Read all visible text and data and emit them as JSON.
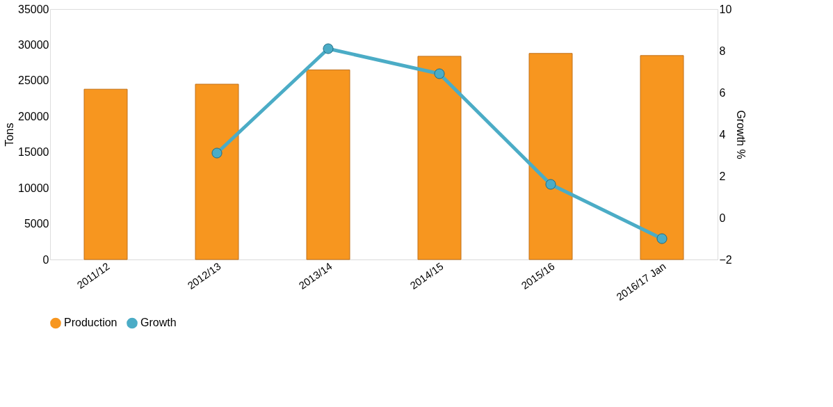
{
  "chart_data": {
    "type": "bar",
    "categories": [
      "2011/12",
      "2012/13",
      "2013/14",
      "2014/15",
      "2015/16",
      "2016/17  Jan"
    ],
    "series": [
      {
        "name": "Production",
        "color": "#f7961f",
        "values": [
          23800,
          24500,
          26500,
          28400,
          28800,
          28500
        ]
      },
      {
        "name": "Growth",
        "type": "line",
        "axis": "y2",
        "color": "#4bacc6",
        "values": [
          null,
          3.1,
          8.1,
          6.9,
          1.6,
          -1.0
        ]
      }
    ],
    "ylabel": "Tons",
    "y2label": "Growth %",
    "ylim": [
      0,
      35000
    ],
    "yticks": [
      0,
      5000,
      10000,
      15000,
      20000,
      25000,
      30000,
      35000
    ],
    "y2lim": [
      -2,
      10
    ],
    "y2ticks": [
      -2,
      0,
      2,
      4,
      6,
      8,
      10
    ],
    "legend": "bottom",
    "marker": "circle",
    "grid": false
  }
}
